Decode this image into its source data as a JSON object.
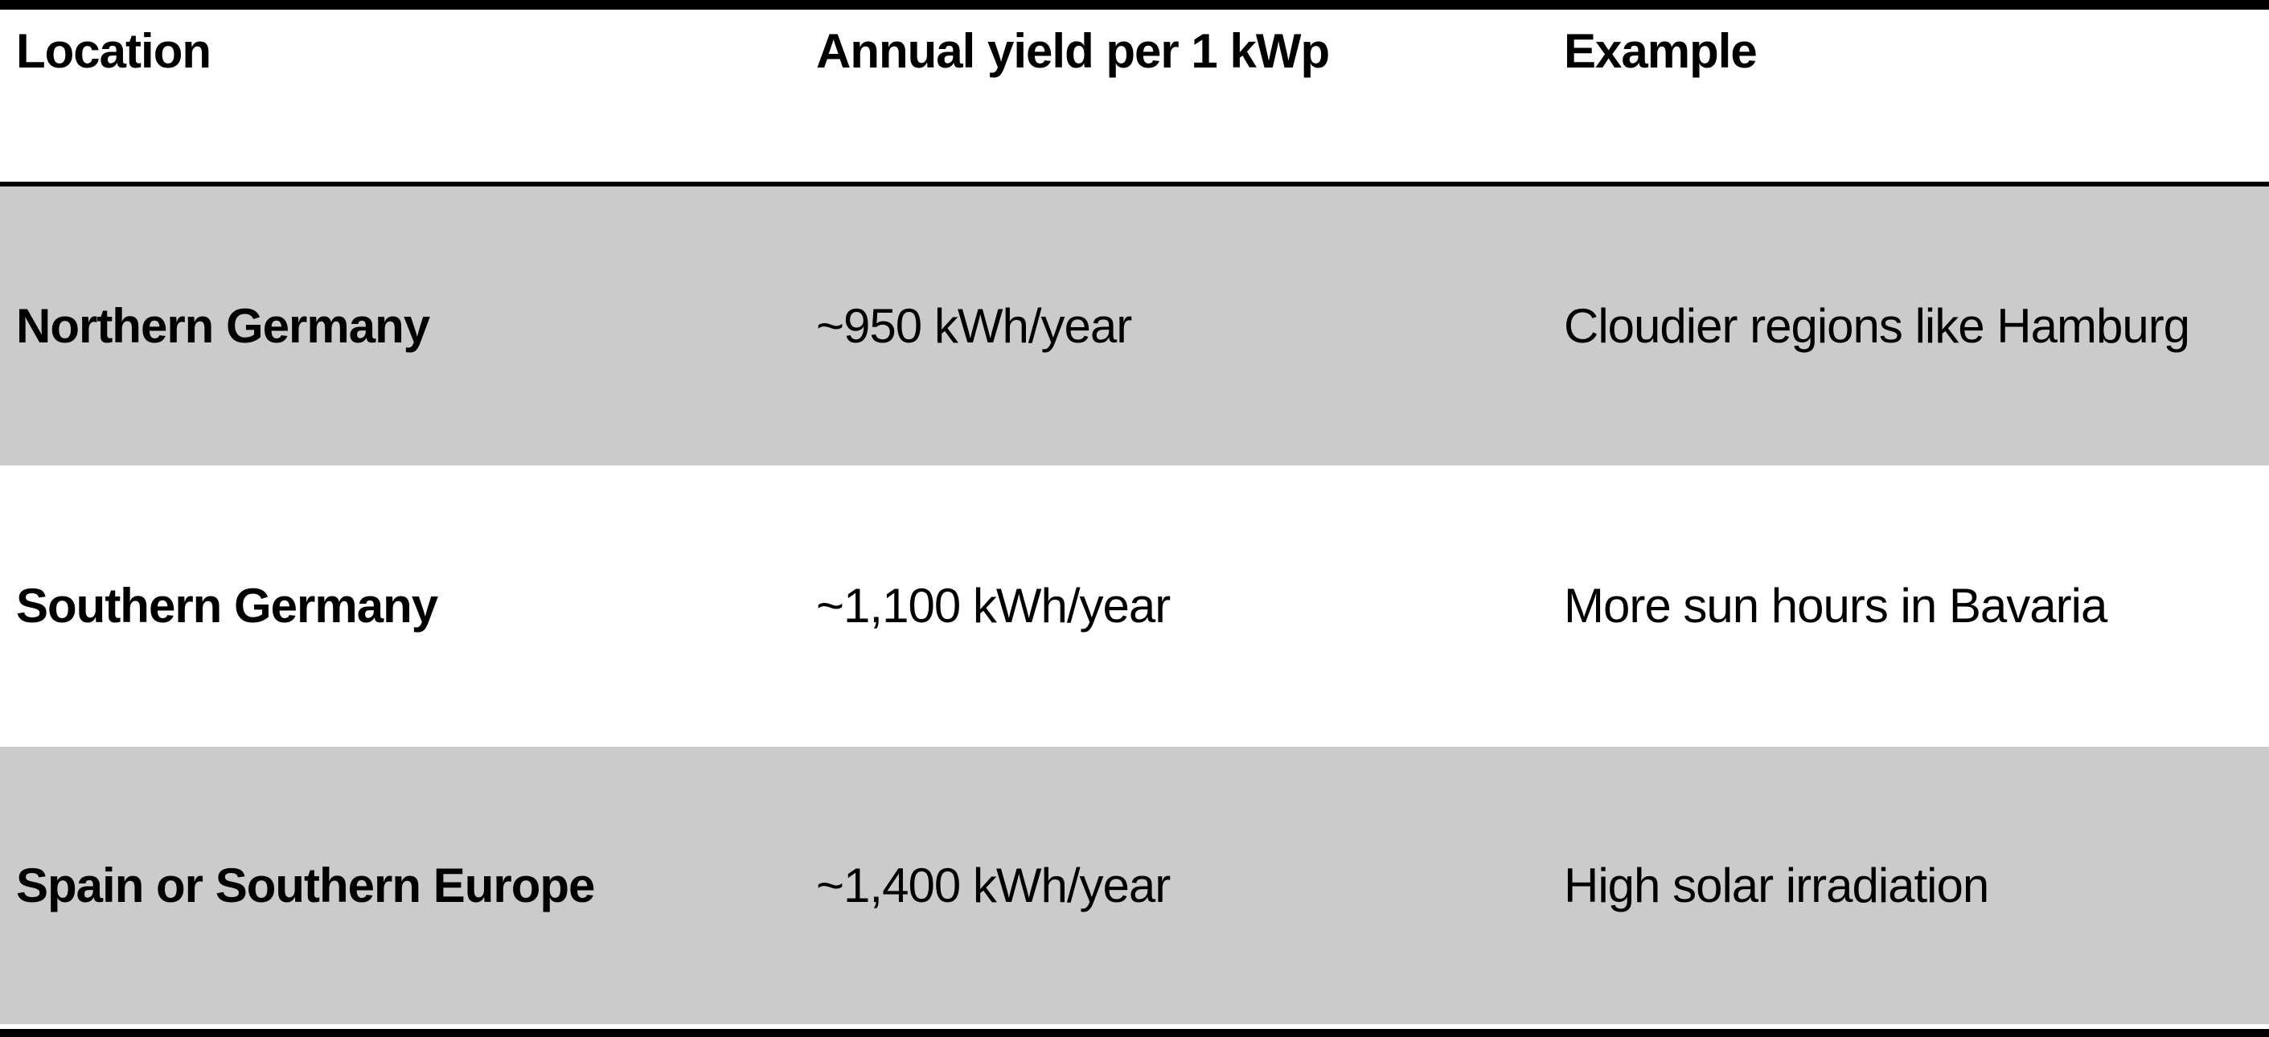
{
  "table": {
    "headers": [
      "Location",
      "Annual yield per 1 kWp",
      "Example"
    ],
    "rows": [
      [
        "Northern Germany",
        "~950 kWh/year",
        "Cloudier regions like Hamburg"
      ],
      [
        "Southern Germany",
        "~1,100 kWh/year",
        "More sun hours in Bavaria"
      ],
      [
        "Spain or Southern Europe",
        "~1,400 kWh/year",
        "High solar irradiation"
      ]
    ],
    "colors": {
      "stripe": "#cbcbcb",
      "background": "#ffffff",
      "border": "#000000",
      "text": "#000000"
    }
  }
}
